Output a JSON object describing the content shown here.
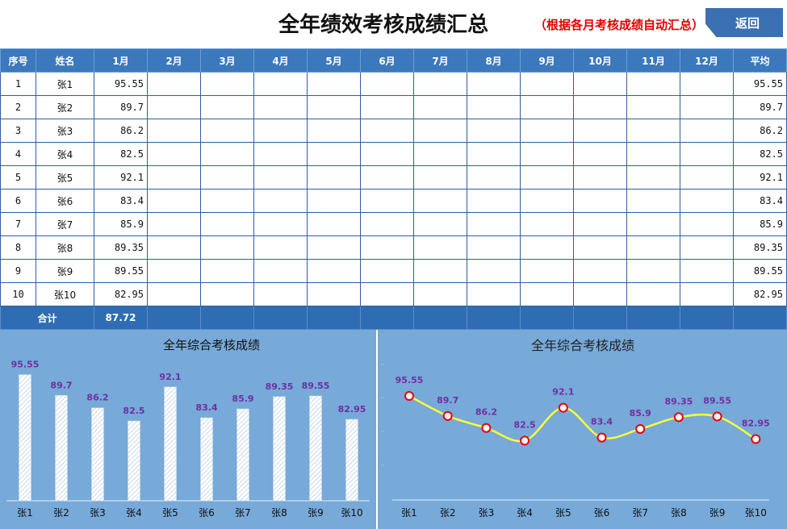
{
  "header": {
    "title": "全年绩效考核成绩汇总",
    "subtitle": "（根据各月考核成绩自动汇总）",
    "back_label": "返回"
  },
  "table": {
    "columns": [
      "序号",
      "姓名",
      "1月",
      "2月",
      "3月",
      "4月",
      "5月",
      "6月",
      "7月",
      "8月",
      "9月",
      "10月",
      "11月",
      "12月",
      "平均"
    ],
    "rows": [
      {
        "no": "1",
        "name": "张1",
        "jan": "95.55",
        "avg": "95.55"
      },
      {
        "no": "2",
        "name": "张2",
        "jan": "89.7",
        "avg": "89.7"
      },
      {
        "no": "3",
        "name": "张3",
        "jan": "86.2",
        "avg": "86.2"
      },
      {
        "no": "4",
        "name": "张4",
        "jan": "82.5",
        "avg": "82.5"
      },
      {
        "no": "5",
        "name": "张5",
        "jan": "92.1",
        "avg": "92.1"
      },
      {
        "no": "6",
        "name": "张6",
        "jan": "83.4",
        "avg": "83.4"
      },
      {
        "no": "7",
        "name": "张7",
        "jan": "85.9",
        "avg": "85.9"
      },
      {
        "no": "8",
        "name": "张8",
        "jan": "89.35",
        "avg": "89.35"
      },
      {
        "no": "9",
        "name": "张9",
        "jan": "89.55",
        "avg": "89.55"
      },
      {
        "no": "10",
        "name": "张10",
        "jan": "82.95",
        "avg": "82.95"
      }
    ],
    "total_label": "合计",
    "total_jan": "87.72"
  },
  "chart_data": [
    {
      "type": "bar",
      "title": "全年综合考核成绩",
      "categories": [
        "张1",
        "张2",
        "张3",
        "张4",
        "张5",
        "张6",
        "张7",
        "张8",
        "张9",
        "张10"
      ],
      "values": [
        95.55,
        89.7,
        86.2,
        82.5,
        92.1,
        83.4,
        85.9,
        89.35,
        89.55,
        82.95
      ],
      "colors": {
        "bar_fill": "#ffffff",
        "bar_hatch": "#9bb8d6",
        "label": "#7030a0"
      }
    },
    {
      "type": "line",
      "title": "全年综合考核成绩",
      "categories": [
        "张1",
        "张2",
        "张3",
        "张4",
        "张5",
        "张6",
        "张7",
        "张8",
        "张9",
        "张10"
      ],
      "values": [
        95.55,
        89.7,
        86.2,
        82.5,
        92.1,
        83.4,
        85.9,
        89.35,
        89.55,
        82.95
      ],
      "colors": {
        "line": "#ffff33",
        "marker_stroke": "#e8000b",
        "marker_fill": "#ffffff",
        "label": "#7030a0"
      }
    }
  ]
}
